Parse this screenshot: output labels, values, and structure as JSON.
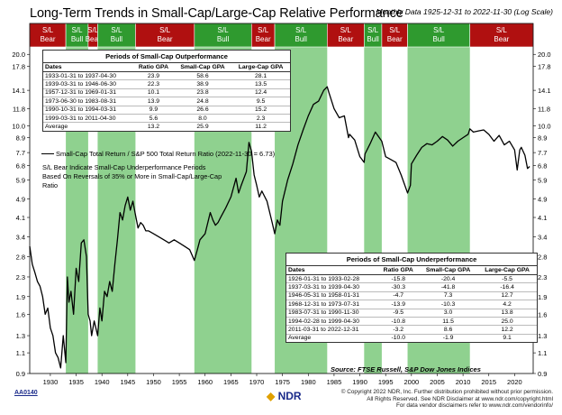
{
  "header": {
    "title": "Long-Term Trends in Small-Cap/Large-Cap Relative Performance",
    "subtitle": "Monthly Data 1925-12-31 to 2022-11-30 (Log Scale)"
  },
  "colors": {
    "bull": "#8fd18f",
    "bear_band": "#b01010",
    "line": "#000000"
  },
  "chart_data": {
    "type": "line",
    "yscale": "log",
    "xlim": [
      1926,
      2023.6
    ],
    "ylim": [
      0.9,
      21.5
    ],
    "yticks": [
      0.9,
      1.1,
      1.3,
      1.6,
      1.9,
      2.3,
      2.8,
      3.4,
      4.1,
      4.9,
      5.9,
      6.8,
      7.7,
      8.9,
      10.0,
      11.8,
      14.1,
      17.8,
      20.0
    ],
    "ytick_labels": [
      "0.9",
      "1.1",
      "1.3",
      "1.6",
      "1.9",
      "2.3",
      "2.8",
      "3.4",
      "4.1",
      "4.9",
      "5.9",
      "6.8",
      "7.7",
      "8.9",
      "10.0",
      "11.8",
      "14.1",
      "17.8",
      "20.0"
    ],
    "xticks": [
      1930,
      1935,
      1940,
      1945,
      1950,
      1955,
      1960,
      1965,
      1970,
      1975,
      1980,
      1985,
      1990,
      1995,
      2000,
      2005,
      2010,
      2015,
      2020
    ],
    "xtick_labels": [
      "1930",
      "1935",
      "1940",
      "1945",
      "1950",
      "1955",
      "1960",
      "1965",
      "1970",
      "1975",
      "1980",
      "1985",
      "1990",
      "1995",
      "2000",
      "2005",
      "2010",
      "2015",
      "2020"
    ],
    "bull_periods": [
      [
        1933.0,
        1937.33
      ],
      [
        1939.17,
        1946.5
      ],
      [
        1957.92,
        1969.0
      ],
      [
        1973.5,
        1983.67
      ],
      [
        1990.83,
        1994.25
      ],
      [
        1999.25,
        2011.33
      ]
    ],
    "regime_bands": [
      {
        "label": "S/L\nBear",
        "start": 1926.0,
        "end": 1933.0,
        "kind": "bear"
      },
      {
        "label": "S/L\nBull",
        "start": 1933.0,
        "end": 1937.33,
        "kind": "bull"
      },
      {
        "label": "S/L\nBear",
        "start": 1937.33,
        "end": 1939.17,
        "kind": "bear"
      },
      {
        "label": "S/L\nBull",
        "start": 1939.17,
        "end": 1946.5,
        "kind": "bull"
      },
      {
        "label": "S/L\nBear",
        "start": 1946.5,
        "end": 1957.92,
        "kind": "bear"
      },
      {
        "label": "S/L\nBull",
        "start": 1957.92,
        "end": 1969.0,
        "kind": "bull"
      },
      {
        "label": "S/L\nBear",
        "start": 1969.0,
        "end": 1973.5,
        "kind": "bear"
      },
      {
        "label": "S/L\nBull",
        "start": 1973.5,
        "end": 1983.67,
        "kind": "bull"
      },
      {
        "label": "S/L\nBear",
        "start": 1983.67,
        "end": 1990.83,
        "kind": "bear"
      },
      {
        "label": "S/L\nBull",
        "start": 1990.83,
        "end": 1994.25,
        "kind": "bull"
      },
      {
        "label": "S/L\nBear",
        "start": 1994.25,
        "end": 1999.25,
        "kind": "bear"
      },
      {
        "label": "S/L\nBull",
        "start": 1999.25,
        "end": 2011.33,
        "kind": "bull"
      },
      {
        "label": "S/L\nBear",
        "start": 2011.33,
        "end": 2023.6,
        "kind": "bear"
      }
    ],
    "series": [
      {
        "name": "Small-Cap Total Return / S&P 500 Total Return Ratio (2022-11-30 = 6.73)",
        "x": [
          1926.0,
          1926.5,
          1927.0,
          1927.5,
          1928.0,
          1928.5,
          1929.0,
          1929.5,
          1930.0,
          1930.5,
          1931.0,
          1931.5,
          1932.0,
          1932.5,
          1933.0,
          1933.3,
          1933.6,
          1934.0,
          1934.5,
          1935.0,
          1935.5,
          1936.0,
          1936.5,
          1937.0,
          1937.33,
          1937.7,
          1938.0,
          1938.5,
          1939.17,
          1939.6,
          1940.0,
          1940.5,
          1941.0,
          1941.5,
          1942.0,
          1942.5,
          1943.0,
          1943.5,
          1944.0,
          1944.5,
          1945.0,
          1945.5,
          1946.0,
          1946.5,
          1947.0,
          1947.5,
          1948.0,
          1948.5,
          1949.0,
          1950.0,
          1951.0,
          1952.0,
          1953.0,
          1954.0,
          1955.0,
          1956.0,
          1957.0,
          1957.92,
          1958.5,
          1959.0,
          1960.0,
          1961.0,
          1961.5,
          1962.0,
          1962.5,
          1963.0,
          1964.0,
          1965.0,
          1966.0,
          1966.5,
          1967.0,
          1968.0,
          1968.5,
          1969.0,
          1969.5,
          1970.0,
          1970.5,
          1971.0,
          1972.0,
          1973.0,
          1973.5,
          1974.0,
          1974.5,
          1975.0,
          1976.0,
          1977.0,
          1978.0,
          1979.0,
          1980.0,
          1981.0,
          1982.0,
          1983.0,
          1983.67,
          1984.0,
          1985.0,
          1986.0,
          1987.0,
          1987.8,
          1988.0,
          1989.0,
          1990.0,
          1990.83,
          1991.0,
          1992.0,
          1993.0,
          1994.25,
          1995.0,
          1996.0,
          1997.0,
          1998.0,
          1999.25,
          1999.8,
          2000.0,
          2001.0,
          2002.0,
          2003.0,
          2004.0,
          2005.0,
          2006.0,
          2007.0,
          2008.0,
          2009.0,
          2010.0,
          2011.0,
          2011.33,
          2012.0,
          2013.0,
          2014.0,
          2015.0,
          2016.0,
          2017.0,
          2018.0,
          2019.0,
          2020.0,
          2020.5,
          2021.0,
          2021.3,
          2022.0,
          2022.5,
          2022.92
        ],
        "values": [
          3.1,
          2.6,
          2.4,
          2.2,
          2.1,
          1.9,
          1.6,
          1.7,
          1.4,
          1.3,
          1.1,
          1.05,
          0.95,
          1.3,
          1.0,
          2.3,
          1.8,
          2.0,
          1.6,
          2.5,
          2.2,
          3.2,
          3.3,
          2.8,
          1.6,
          1.5,
          1.3,
          1.5,
          1.3,
          1.7,
          1.5,
          2.0,
          1.9,
          2.2,
          2.0,
          2.6,
          3.3,
          4.3,
          4.0,
          4.6,
          5.0,
          4.4,
          4.8,
          4.2,
          3.7,
          3.9,
          3.8,
          3.6,
          3.6,
          3.5,
          3.4,
          3.3,
          3.2,
          3.3,
          3.2,
          3.1,
          3.0,
          2.7,
          3.0,
          3.3,
          3.5,
          4.3,
          4.0,
          3.8,
          3.9,
          4.1,
          4.5,
          5.0,
          6.0,
          5.2,
          5.6,
          6.4,
          8.5,
          7.8,
          6.2,
          5.6,
          5.0,
          5.3,
          4.8,
          3.9,
          3.5,
          4.0,
          3.8,
          4.8,
          5.9,
          6.9,
          8.3,
          9.6,
          11.0,
          12.3,
          12.7,
          14.1,
          14.6,
          13.8,
          11.8,
          10.8,
          11.0,
          8.9,
          9.2,
          8.7,
          7.4,
          7.0,
          7.6,
          8.4,
          9.4,
          8.6,
          7.4,
          7.2,
          7.0,
          6.2,
          5.2,
          5.6,
          6.9,
          7.5,
          8.1,
          8.4,
          8.3,
          8.6,
          9.0,
          8.7,
          8.2,
          8.6,
          8.9,
          9.2,
          9.7,
          9.4,
          9.5,
          9.6,
          9.2,
          8.6,
          9.1,
          8.3,
          8.6,
          7.9,
          6.5,
          7.9,
          8.1,
          7.5,
          6.6,
          6.73
        ]
      }
    ],
    "legend": {
      "label": "Small-Cap Total Return / S&P 500 Total Return Ratio (2022-11-30 = 6.73)",
      "note": "S/L Bear Indicate Small-Cap Underperformance Periods Based On Reversals of 35% or More in Small-Cap/Large-Cap Ratio"
    }
  },
  "outperformance_table": {
    "caption": "Periods of Small-Cap Outperformance",
    "headers": [
      "Dates",
      "Ratio GPA",
      "Small-Cap GPA",
      "Large-Cap GPA"
    ],
    "rows": [
      [
        "1933-01-31 to 1937-04-30",
        "23.9",
        "58.6",
        "28.1"
      ],
      [
        "1939-03-31 to 1946-06-30",
        "22.3",
        "38.9",
        "13.5"
      ],
      [
        "1957-12-31 to 1969-01-31",
        "10.1",
        "23.8",
        "12.4"
      ],
      [
        "1973-06-30 to 1983-08-31",
        "13.9",
        "24.8",
        "9.5"
      ],
      [
        "1990-10-31 to 1994-03-31",
        "9.9",
        "26.6",
        "15.2"
      ],
      [
        "1999-03-31 to 2011-04-30",
        "5.6",
        "8.0",
        "2.3"
      ],
      [
        "Average",
        "13.2",
        "25.9",
        "11.2"
      ]
    ]
  },
  "underperformance_table": {
    "caption": "Periods of Small-Cap Underperformance",
    "headers": [
      "Dates",
      "Ratio GPA",
      "Small-Cap GPA",
      "Large-Cap GPA"
    ],
    "rows": [
      [
        "1926-01-31 to 1933-02-28",
        "-15.8",
        "-20.4",
        "-5.5"
      ],
      [
        "1937-03-31 to 1939-04-30",
        "-30.3",
        "-41.8",
        "-16.4"
      ],
      [
        "1946-05-31 to 1958-01-31",
        "-4.7",
        "7.3",
        "12.7"
      ],
      [
        "1968-12-31 to 1973-07-31",
        "-13.9",
        "-10.3",
        "4.2"
      ],
      [
        "1983-07-31 to 1990-11-30",
        "-9.5",
        "3.0",
        "13.8"
      ],
      [
        "1994-02-28 to 1999-04-30",
        "-10.8",
        "11.5",
        "25.0"
      ],
      [
        "2011-03-31 to 2022-12-31",
        "-3.2",
        "8.6",
        "12.2"
      ],
      [
        "Average",
        "-10.0",
        "-1.9",
        "9.1"
      ]
    ]
  },
  "source": {
    "label": "Source:",
    "text": "FTSE Russell, S&P Dow Jones Indices"
  },
  "footer": {
    "code": "AA0140",
    "logo": "NDR",
    "copyright_lines": [
      "© Copyright 2022 NDR, Inc. Further distribution prohibited without prior permission.",
      "All Rights Reserved. See NDR Disclaimer at www.ndr.com/copyright.html",
      "For data vendor disclaimers refer to www.ndr.com/vendorinfo/"
    ]
  }
}
